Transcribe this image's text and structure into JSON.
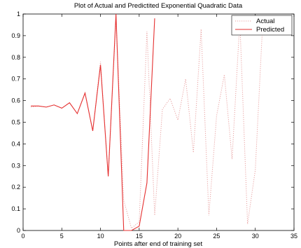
{
  "chart_data": {
    "type": "line",
    "title": "Plot of Actual and Predictited Exponential Quadratic Data",
    "xlabel": "Points after end of training set",
    "ylabel": "",
    "xlim": [
      0,
      35
    ],
    "ylim": [
      0,
      1
    ],
    "xticks": [
      0,
      5,
      10,
      15,
      20,
      25,
      30,
      35
    ],
    "yticks": [
      0,
      0.1,
      0.2,
      0.3,
      0.4,
      0.5,
      0.6,
      0.7,
      0.8,
      0.9,
      1
    ],
    "grid": false,
    "legend": "top-right",
    "series": [
      {
        "name": "Actual",
        "color": "#e8a0a0",
        "style": "dotted",
        "x": [
          1,
          2,
          3,
          4,
          5,
          6,
          7,
          8,
          9,
          10,
          11,
          12,
          13,
          14,
          15,
          16,
          17,
          18,
          19,
          20,
          21,
          22,
          23,
          24,
          25,
          26,
          27,
          28,
          29,
          30,
          31
        ],
        "y": [
          0.57,
          0.575,
          0.57,
          0.58,
          0.565,
          0.59,
          0.54,
          0.635,
          0.46,
          0.78,
          0.25,
          0.98,
          0.14,
          0.01,
          0.04,
          0.92,
          0.07,
          0.56,
          0.61,
          0.51,
          0.7,
          0.36,
          0.93,
          0.07,
          0.53,
          0.72,
          0.33,
          0.97,
          0.03,
          0.28,
          0.99
        ]
      },
      {
        "name": "Predicted",
        "color": "#e53030",
        "style": "solid",
        "x": [
          1,
          2,
          3,
          4,
          5,
          6,
          7,
          8,
          9,
          10,
          11,
          12,
          13,
          14,
          15,
          16,
          17
        ],
        "y": [
          0.575,
          0.575,
          0.57,
          0.58,
          0.565,
          0.59,
          0.54,
          0.635,
          0.46,
          0.765,
          0.25,
          1.0,
          0.0,
          0.0,
          0.02,
          0.22,
          0.98
        ]
      }
    ]
  }
}
